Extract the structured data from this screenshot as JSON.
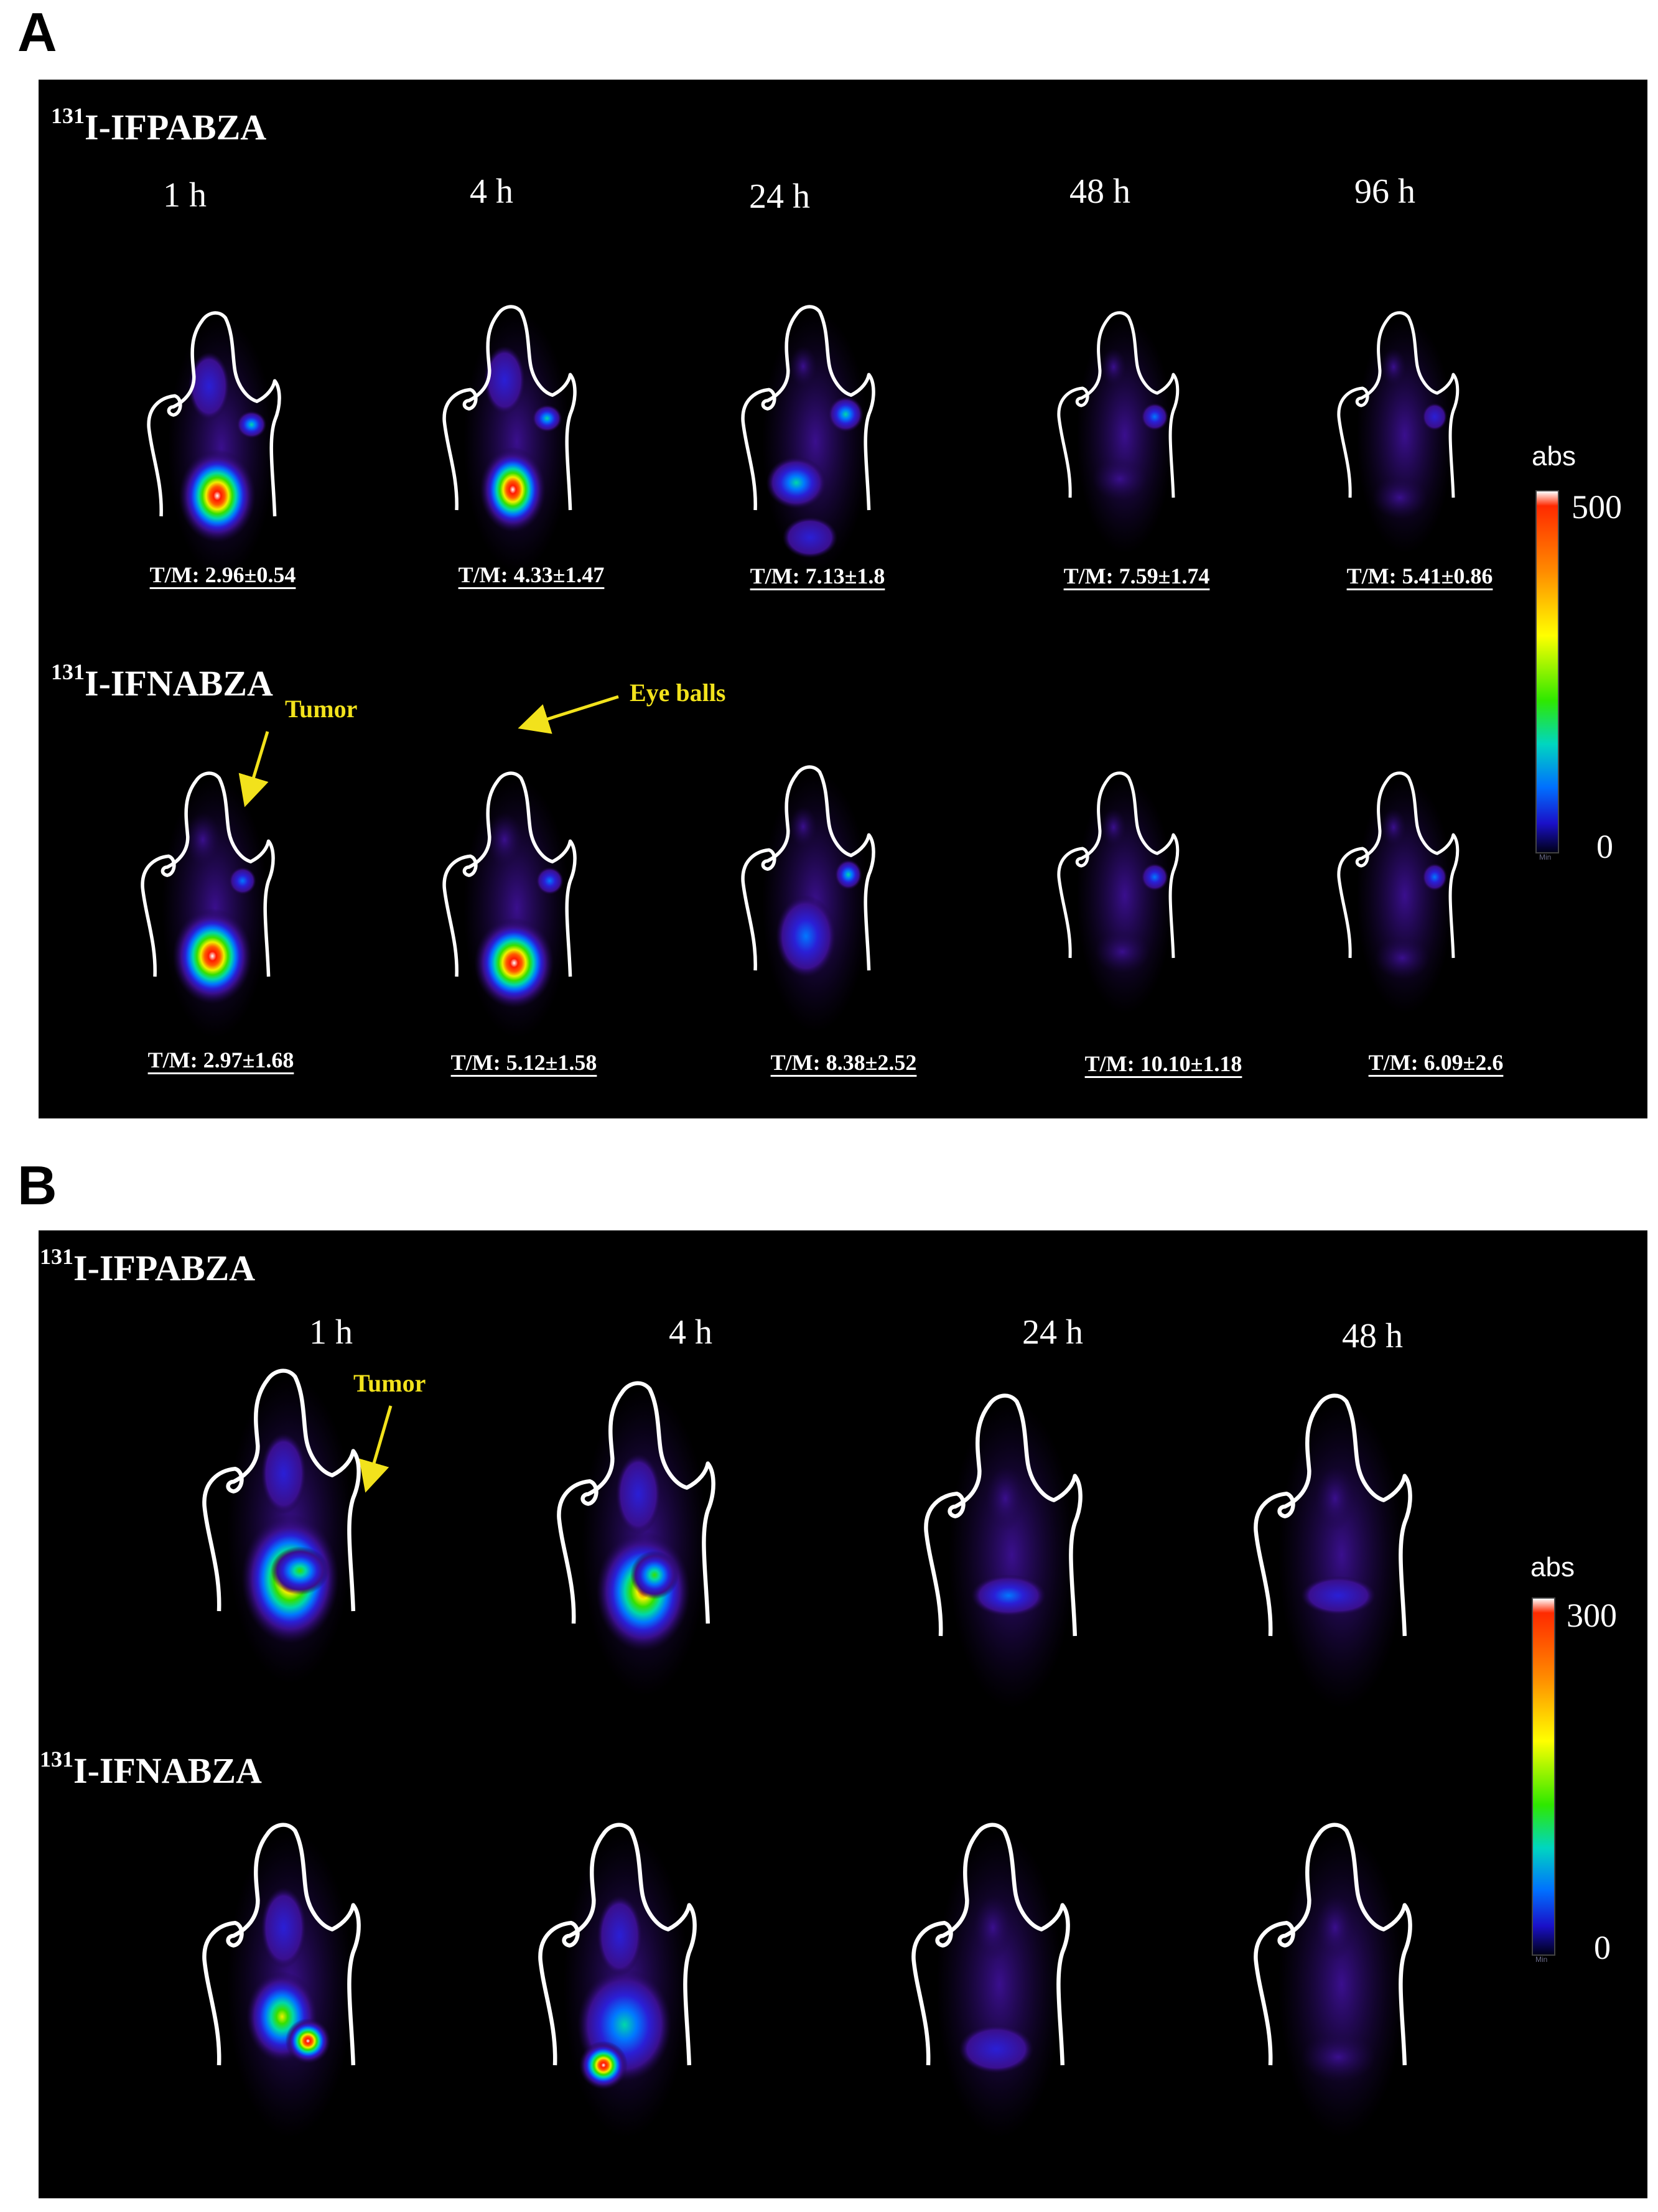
{
  "figure": {
    "panel_a": {
      "letter": "A",
      "rows": [
        {
          "tracer_sup": "131",
          "tracer_name": "I-IFPABZA",
          "timepoints": [
            "1 h",
            "4 h",
            "24 h",
            "48 h",
            "96 h"
          ],
          "tm_labels": [
            "T/M: 2.96±0.54",
            "T/M: 4.33±1.47",
            "T/M: 7.13±1.8",
            "T/M: 7.59±1.74",
            "T/M: 5.41±0.86"
          ]
        },
        {
          "tracer_sup": "131",
          "tracer_name": "I-IFNABZA",
          "tm_labels": [
            "T/M: 2.97±1.68",
            "T/M: 5.12±1.58",
            "T/M: 8.38±2.52",
            "T/M: 10.10±1.18",
            "T/M: 6.09±2.6"
          ]
        }
      ],
      "annotations": {
        "tumor": "Tumor",
        "eye_balls": "Eye balls"
      },
      "colorbar": {
        "unit": "abs",
        "max": "500",
        "min": "0",
        "min_tag": "Min"
      }
    },
    "panel_b": {
      "letter": "B",
      "rows": [
        {
          "tracer_sup": "131",
          "tracer_name": "I-IFPABZA",
          "timepoints": [
            "1 h",
            "4 h",
            "24 h",
            "48 h"
          ]
        },
        {
          "tracer_sup": "131",
          "tracer_name": "I-IFNABZA"
        }
      ],
      "annotations": {
        "tumor": "Tumor"
      },
      "colorbar": {
        "unit": "abs",
        "max": "300",
        "min": "0",
        "min_tag": "Min"
      }
    }
  }
}
